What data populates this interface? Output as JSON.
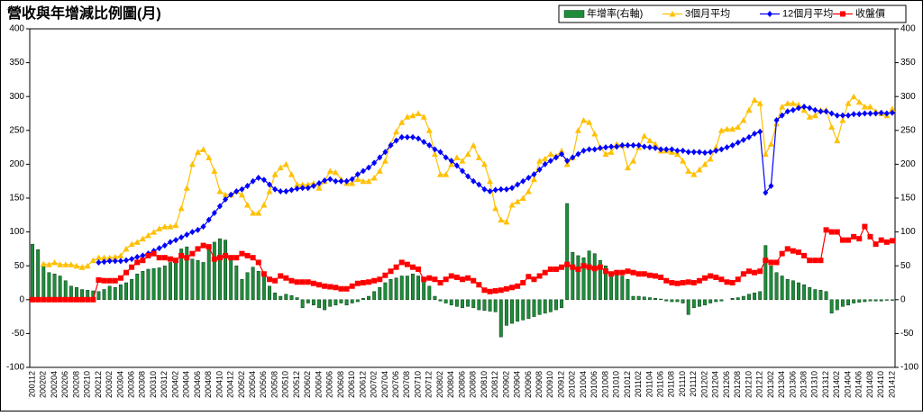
{
  "chart_data": {
    "type": "combo",
    "title": "營收與年增減比例圖(月)",
    "categories": [
      "200112",
      null,
      "200202",
      null,
      "200204",
      null,
      "200206",
      null,
      "200208",
      null,
      "200210",
      null,
      "200212",
      null,
      "200302",
      null,
      "200304",
      null,
      "200306",
      null,
      "200308",
      null,
      "200310",
      null,
      "200312",
      null,
      "200402",
      null,
      "200404",
      null,
      "200406",
      null,
      "200408",
      null,
      "200410",
      null,
      "200412",
      null,
      "200502",
      null,
      "200504",
      null,
      "200506",
      null,
      "200508",
      null,
      "200510",
      null,
      "200512",
      null,
      "200602",
      null,
      "200604",
      null,
      "200606",
      null,
      "200608",
      null,
      "200610",
      null,
      "200612",
      null,
      "200702",
      null,
      "200704",
      null,
      "200706",
      null,
      "200708",
      null,
      "200710",
      null,
      "200712",
      null,
      "200802",
      null,
      "200804",
      null,
      "200806",
      null,
      "200808",
      null,
      "200810",
      null,
      "200812",
      null,
      "200902",
      null,
      "200904",
      null,
      "200906",
      null,
      "200908",
      null,
      "200910",
      null,
      "200912",
      null,
      "201002",
      null,
      "201004",
      null,
      "201006",
      null,
      "201008",
      null,
      "201010",
      null,
      "201012",
      null,
      "201102",
      null,
      "201104",
      null,
      "201106",
      null,
      "201108",
      null,
      "201110",
      null,
      "201112",
      null,
      "201202",
      null,
      "201204",
      null,
      "201206",
      null,
      "201208",
      null,
      "201210",
      null,
      "201212",
      null,
      "201302",
      null,
      "201304",
      null,
      "201306",
      null,
      "201308",
      null,
      "201310",
      null,
      "201312",
      null,
      "201402",
      null,
      "201404",
      null,
      "201406",
      null,
      "201408",
      null,
      "201410",
      null,
      "201412"
    ],
    "series": [
      {
        "name": "年增率(右軸)",
        "color": "#1e8c3a",
        "kind": "bar",
        "axis": "y2",
        "values": [
          82,
          74,
          52,
          40,
          38,
          35,
          28,
          20,
          18,
          15,
          14,
          13,
          12,
          15,
          20,
          18,
          22,
          25,
          30,
          38,
          42,
          45,
          46,
          47,
          50,
          55,
          60,
          75,
          78,
          60,
          58,
          55,
          78,
          85,
          90,
          88,
          60,
          50,
          30,
          40,
          48,
          42,
          35,
          20,
          10,
          5,
          8,
          6,
          3,
          -12,
          -5,
          -8,
          -12,
          -15,
          -10,
          -8,
          -5,
          -8,
          -5,
          -3,
          2,
          5,
          12,
          18,
          25,
          30,
          32,
          35,
          35,
          38,
          35,
          30,
          20,
          5,
          -2,
          -5,
          -8,
          -10,
          -12,
          -10,
          -12,
          -15,
          -16,
          -17,
          -18,
          -55,
          -38,
          -35,
          -32,
          -30,
          -28,
          -25,
          -22,
          -20,
          -18,
          -15,
          -12,
          142,
          70,
          65,
          62,
          72,
          68,
          58,
          50,
          40,
          38,
          35,
          30,
          5,
          5,
          4,
          3,
          2,
          1,
          -2,
          -3,
          -3,
          -5,
          -22,
          -12,
          -10,
          -8,
          -5,
          -3,
          -2,
          0,
          2,
          3,
          5,
          8,
          10,
          12,
          80,
          50,
          40,
          35,
          30,
          28,
          25,
          22,
          18,
          15,
          14,
          12,
          -20,
          -15,
          -10,
          -8,
          -5,
          -4,
          -3,
          -2,
          -2,
          -2,
          -1,
          -1
        ]
      },
      {
        "name": "3個月平均",
        "color": "#ffc000",
        "kind": "line",
        "marker": "triangle",
        "values": [
          null,
          null,
          53,
          52,
          55,
          52,
          52,
          52,
          50,
          48,
          50,
          58,
          62,
          62,
          62,
          63,
          65,
          75,
          82,
          85,
          90,
          95,
          100,
          105,
          108,
          108,
          110,
          135,
          165,
          200,
          218,
          222,
          210,
          190,
          160,
          155,
          155,
          160,
          155,
          140,
          128,
          128,
          140,
          160,
          185,
          195,
          200,
          185,
          170,
          170,
          170,
          172,
          165,
          175,
          190,
          188,
          178,
          172,
          172,
          178,
          175,
          175,
          180,
          190,
          205,
          230,
          248,
          262,
          270,
          272,
          275,
          270,
          250,
          215,
          185,
          185,
          200,
          210,
          205,
          215,
          228,
          210,
          200,
          175,
          135,
          118,
          115,
          140,
          145,
          150,
          160,
          178,
          205,
          208,
          215,
          212,
          220,
          200,
          210,
          250,
          265,
          262,
          245,
          225,
          215,
          218,
          230,
          228,
          195,
          205,
          225,
          242,
          235,
          230,
          220,
          220,
          218,
          215,
          205,
          190,
          185,
          192,
          200,
          208,
          225,
          250,
          252,
          252,
          255,
          265,
          280,
          295,
          290,
          215,
          230,
          260,
          285,
          290,
          290,
          288,
          280,
          270,
          272,
          280,
          280,
          255,
          235,
          265,
          290,
          300,
          292,
          285,
          285,
          278,
          275,
          272,
          282
        ]
      },
      {
        "name": "12個月平均",
        "color": "#0000ff",
        "kind": "line",
        "marker": "diamond",
        "values": [
          null,
          null,
          null,
          null,
          null,
          null,
          null,
          null,
          null,
          null,
          null,
          null,
          55,
          56,
          57,
          57,
          57,
          58,
          60,
          63,
          65,
          68,
          72,
          76,
          80,
          85,
          88,
          92,
          96,
          100,
          103,
          108,
          118,
          128,
          138,
          148,
          155,
          160,
          163,
          168,
          175,
          180,
          177,
          170,
          163,
          160,
          160,
          162,
          164,
          165,
          165,
          168,
          172,
          176,
          178,
          175,
          175,
          175,
          178,
          185,
          190,
          195,
          202,
          210,
          218,
          228,
          235,
          240,
          240,
          240,
          238,
          233,
          228,
          222,
          218,
          210,
          205,
          198,
          190,
          182,
          175,
          170,
          163,
          160,
          162,
          163,
          163,
          165,
          170,
          175,
          180,
          185,
          192,
          200,
          205,
          210,
          215,
          205,
          210,
          215,
          220,
          222,
          222,
          224,
          225,
          226,
          226,
          228,
          228,
          228,
          228,
          226,
          225,
          224,
          222,
          222,
          222,
          220,
          220,
          218,
          218,
          218,
          217,
          218,
          220,
          222,
          225,
          228,
          232,
          236,
          240,
          245,
          248,
          158,
          168,
          265,
          272,
          278,
          280,
          283,
          285,
          283,
          280,
          278,
          278,
          275,
          272,
          272,
          272,
          274,
          274,
          275,
          275,
          275,
          276,
          275,
          276
        ]
      },
      {
        "name": "收盤價",
        "color": "#ff0000",
        "kind": "line",
        "marker": "square",
        "values": [
          0,
          0,
          0,
          0,
          0,
          0,
          0,
          0,
          0,
          0,
          0,
          0,
          29,
          28,
          28,
          28,
          32,
          40,
          48,
          55,
          58,
          65,
          68,
          62,
          62,
          60,
          58,
          65,
          62,
          68,
          75,
          80,
          78,
          60,
          62,
          65,
          62,
          62,
          68,
          65,
          62,
          55,
          38,
          30,
          28,
          35,
          32,
          28,
          26,
          26,
          26,
          24,
          22,
          20,
          19,
          18,
          16,
          16,
          20,
          24,
          25,
          26,
          28,
          30,
          36,
          42,
          48,
          55,
          52,
          48,
          45,
          30,
          32,
          30,
          25,
          30,
          35,
          33,
          30,
          32,
          28,
          22,
          14,
          12,
          13,
          14,
          16,
          18,
          20,
          25,
          34,
          30,
          35,
          40,
          45,
          45,
          48,
          52,
          48,
          45,
          50,
          48,
          46,
          48,
          42,
          38,
          40,
          40,
          42,
          40,
          38,
          38,
          36,
          35,
          33,
          28,
          25,
          24,
          25,
          26,
          25,
          28,
          32,
          35,
          33,
          30,
          26,
          25,
          30,
          38,
          42,
          40,
          42,
          58,
          55,
          55,
          68,
          75,
          72,
          70,
          65,
          58,
          58,
          58,
          103,
          100,
          100,
          88,
          88,
          93,
          90,
          108,
          93,
          82,
          88,
          85,
          87
        ]
      }
    ],
    "ylim": [
      -100,
      400
    ],
    "yticks": [
      -100,
      -50,
      0,
      50,
      100,
      150,
      200,
      250,
      300,
      350,
      400
    ],
    "y2lim": [
      -100,
      400
    ],
    "y2ticks": [
      -100,
      -50,
      0,
      50,
      100,
      150,
      200,
      250,
      300,
      350,
      400
    ],
    "grid": false,
    "legend": "top-right"
  }
}
